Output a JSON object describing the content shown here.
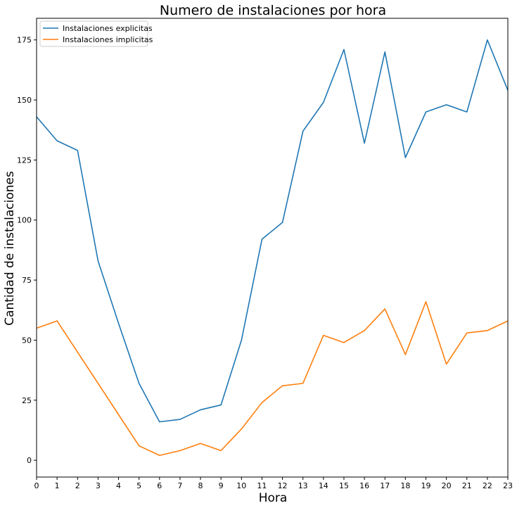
{
  "chart_data": {
    "type": "line",
    "title": "Numero de instalaciones por hora",
    "xlabel": "Hora",
    "ylabel": "Cantidad de instalaciones",
    "x": [
      0,
      1,
      2,
      3,
      4,
      5,
      6,
      7,
      8,
      9,
      10,
      11,
      12,
      13,
      14,
      15,
      16,
      17,
      18,
      19,
      20,
      21,
      22,
      23
    ],
    "xlim": [
      0,
      23
    ],
    "ylim": [
      -7,
      184
    ],
    "yticks": [
      0,
      25,
      50,
      75,
      100,
      125,
      150,
      175
    ],
    "grid": false,
    "legend_position": "top-left",
    "series": [
      {
        "name": "Instalaciones explicitas",
        "color": "#1f77b4",
        "values": [
          143,
          133,
          129,
          83,
          57,
          32,
          16,
          17,
          21,
          23,
          50,
          92,
          99,
          137,
          149,
          171,
          132,
          170,
          126,
          145,
          148,
          145,
          175,
          154
        ]
      },
      {
        "name": "Instalaciones implicitas",
        "color": "#ff7f0e",
        "values": [
          55,
          58,
          45,
          32,
          19,
          6,
          2,
          4,
          7,
          4,
          13,
          24,
          31,
          32,
          52,
          49,
          54,
          63,
          44,
          66,
          40,
          53,
          54,
          58
        ]
      }
    ]
  }
}
